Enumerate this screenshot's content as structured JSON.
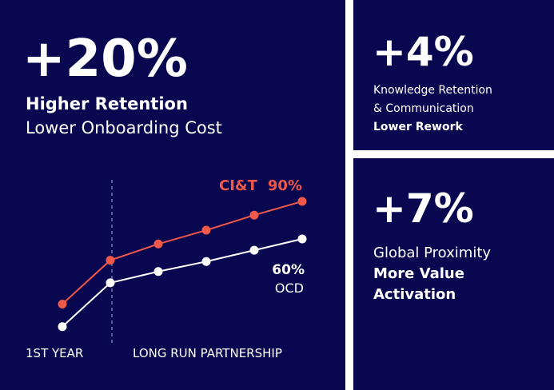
{
  "main": {
    "headline": "+20%",
    "lines": [
      "Higher Retention",
      "Lower Onboarding Cost"
    ]
  },
  "cards": [
    {
      "headline": "+4%",
      "lines": [
        "Knowledge Retention",
        "& Communication",
        "Lower Rework"
      ]
    },
    {
      "headline": "+7%",
      "lines": [
        "Global Proximity",
        "More Value",
        "Activation"
      ]
    }
  ],
  "chart_data": {
    "type": "line",
    "categories": [
      null,
      null,
      null,
      null,
      null,
      null
    ],
    "x_labels": [
      "1ST YEAR",
      "LONG RUN PARTNERSHIP"
    ],
    "ylim": [
      -20,
      100
    ],
    "series": [
      {
        "name": "CI&T",
        "color": "#f0584a",
        "values": [
          8,
          43,
          56,
          67,
          79,
          90
        ],
        "value_labels": [
          null,
          null,
          null,
          null,
          null,
          "90%"
        ]
      },
      {
        "name": "OCD",
        "color": "#ffffff",
        "values": [
          -10,
          25,
          34,
          42,
          51,
          60
        ],
        "value_labels": [
          null,
          null,
          null,
          null,
          null,
          "60%"
        ]
      }
    ]
  }
}
